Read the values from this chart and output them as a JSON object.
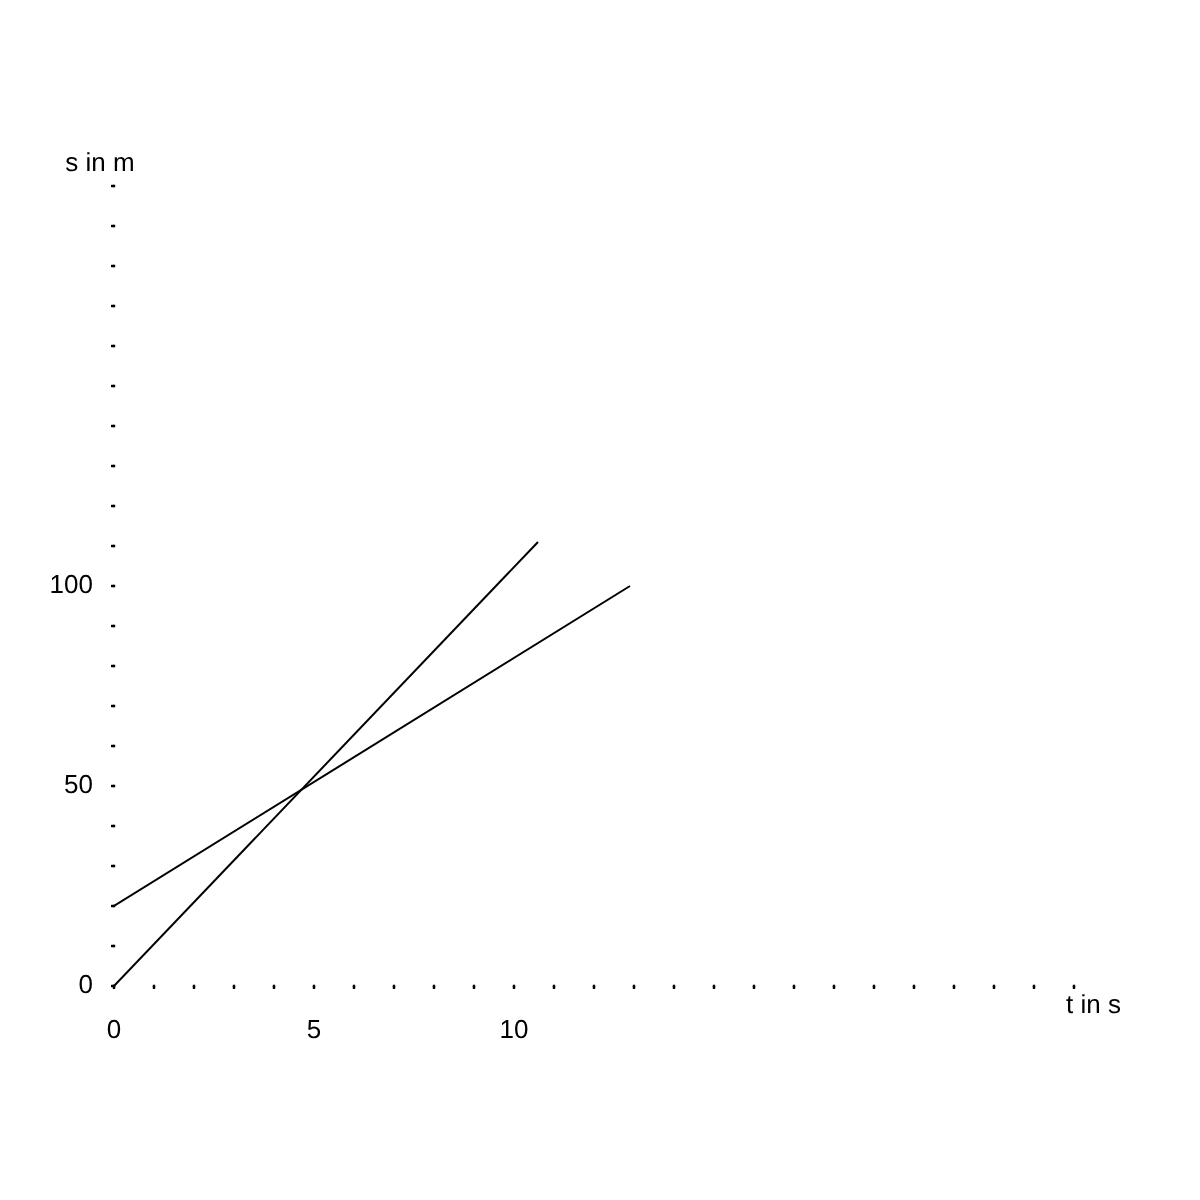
{
  "chart_data": {
    "type": "line",
    "xlabel": "t in s",
    "ylabel": "s in m",
    "xlim": [
      0,
      24
    ],
    "ylim": [
      0,
      200
    ],
    "xticks": [
      0,
      {
        "value": 1,
        "label": null
      },
      {
        "value": 2,
        "label": null
      },
      {
        "value": 3,
        "label": null
      },
      {
        "value": 4,
        "label": null
      },
      5,
      {
        "value": 6,
        "label": null
      },
      {
        "value": 7,
        "label": null
      },
      {
        "value": 8,
        "label": null
      },
      {
        "value": 9,
        "label": null
      },
      10,
      {
        "value": 11,
        "label": null
      },
      {
        "value": 12,
        "label": null
      },
      {
        "value": 13,
        "label": null
      },
      {
        "value": 14,
        "label": null
      },
      {
        "value": 15,
        "label": null
      },
      {
        "value": 16,
        "label": null
      },
      {
        "value": 17,
        "label": null
      },
      {
        "value": 18,
        "label": null
      },
      {
        "value": 19,
        "label": null
      },
      {
        "value": 20,
        "label": null
      },
      {
        "value": 21,
        "label": null
      },
      {
        "value": 22,
        "label": null
      },
      {
        "value": 23,
        "label": null
      },
      {
        "value": 24,
        "label": null
      }
    ],
    "yticks": [
      0,
      {
        "value": 10,
        "label": null
      },
      {
        "value": 20,
        "label": null
      },
      {
        "value": 30,
        "label": null
      },
      {
        "value": 40,
        "label": null
      },
      50,
      {
        "value": 60,
        "label": null
      },
      {
        "value": 70,
        "label": null
      },
      {
        "value": 80,
        "label": null
      },
      {
        "value": 90,
        "label": null
      },
      100,
      {
        "value": 110,
        "label": null
      },
      {
        "value": 120,
        "label": null
      },
      {
        "value": 130,
        "label": null
      },
      {
        "value": 140,
        "label": null
      },
      {
        "value": 150,
        "label": null
      },
      {
        "value": 160,
        "label": null
      },
      {
        "value": 170,
        "label": null
      },
      {
        "value": 180,
        "label": null
      },
      {
        "value": 190,
        "label": null
      },
      {
        "value": 200,
        "label": null
      }
    ],
    "series": [
      {
        "color": "#000000",
        "x": [
          0,
          10.6
        ],
        "values": [
          0,
          111
        ]
      },
      {
        "color": "#000000",
        "x": [
          0,
          12.9
        ],
        "values": [
          20,
          100
        ]
      }
    ],
    "grid": false,
    "legend": false,
    "marker": "none",
    "line_style": "solid"
  }
}
